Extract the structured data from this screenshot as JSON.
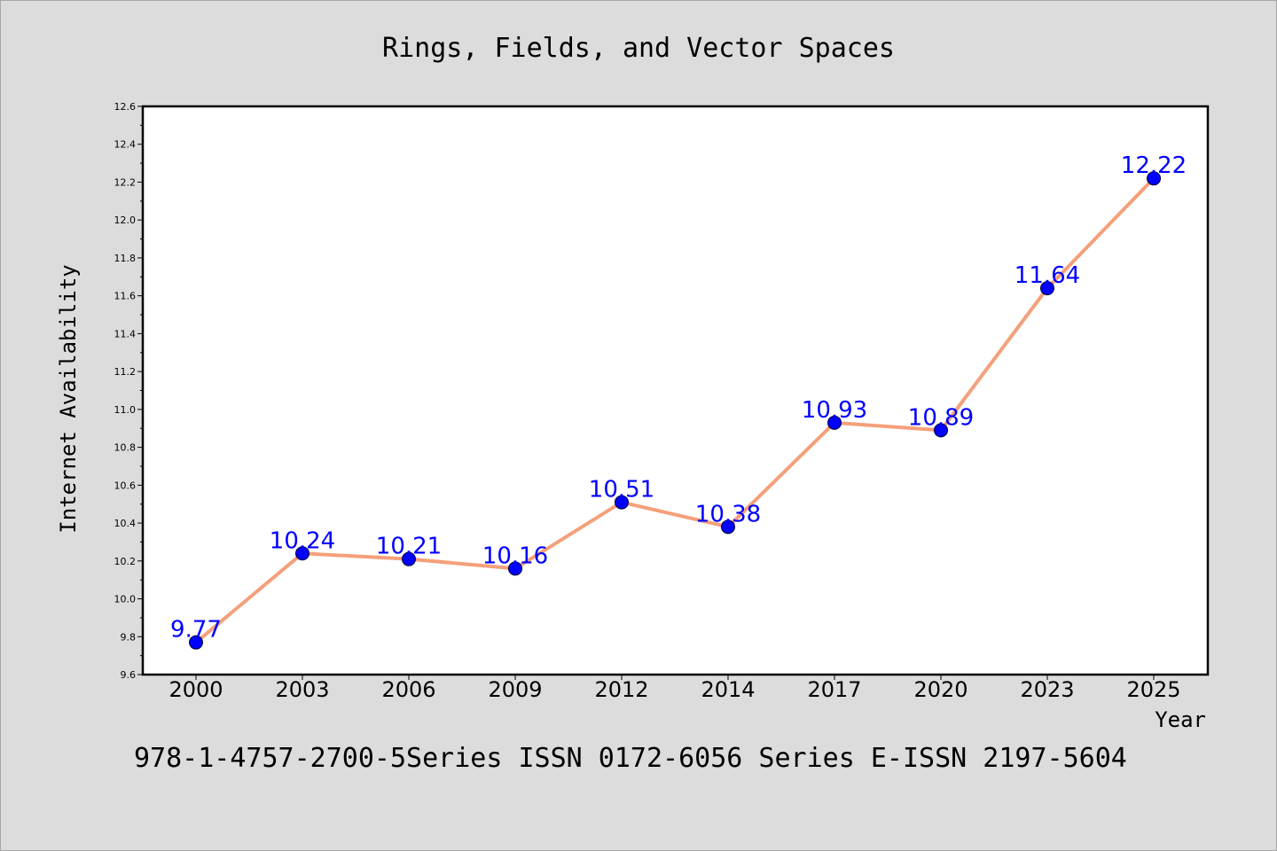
{
  "chart_data": {
    "type": "line",
    "title": "Rings, Fields, and Vector Spaces",
    "xlabel": "Year",
    "ylabel": "Internet Availability",
    "categories": [
      "2000",
      "2003",
      "2006",
      "2009",
      "2012",
      "2014",
      "2017",
      "2020",
      "2023",
      "2025"
    ],
    "series": [
      {
        "values": [
          9.77,
          10.24,
          10.21,
          10.16,
          10.51,
          10.38,
          10.93,
          10.89,
          11.64,
          12.22
        ],
        "labels": [
          "9.77",
          "10.24",
          "10.21",
          "10.16",
          "10.51",
          "10.38",
          "10.93",
          "10.89",
          "11.64",
          "12.22"
        ]
      }
    ],
    "ylim": [
      9.6,
      12.6
    ],
    "yticks": [
      "9.6",
      "9.8",
      "10.0",
      "10.2",
      "10.4",
      "10.6",
      "10.8",
      "11.0",
      "11.2",
      "11.4",
      "11.6",
      "11.8",
      "12.0",
      "12.2",
      "12.4",
      "12.6"
    ],
    "grid": false,
    "colors": {
      "line": "#f4a07a",
      "marker": "#0000ff",
      "data_label": "#0000ff",
      "background": "#dcdcdc",
      "plot_background": "#ffffff"
    }
  },
  "footer": "978-1-4757-2700-5Series ISSN 0172-6056 Series E-ISSN 2197-5604"
}
